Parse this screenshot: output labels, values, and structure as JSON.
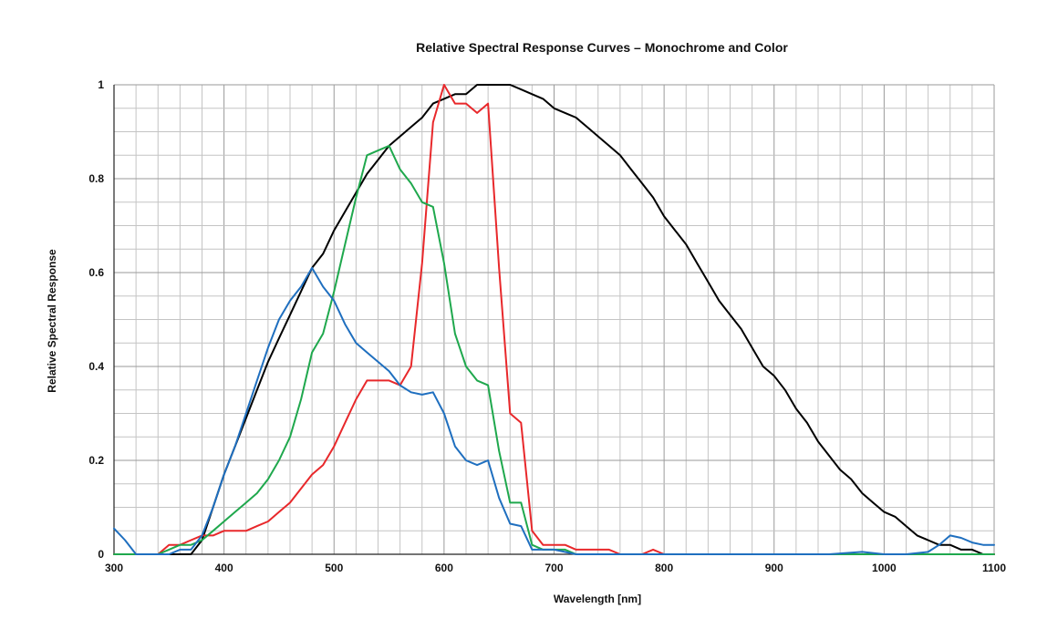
{
  "chart_data": {
    "type": "line",
    "title": "Relative Spectral Response Curves – Monochrome and Color",
    "xlabel": "Wavelength [nm]",
    "ylabel": "Relative Spectral Response",
    "xlim": [
      300,
      1100
    ],
    "ylim": [
      0,
      1
    ],
    "x_ticks": [
      "300",
      "400",
      "500",
      "600",
      "700",
      "800",
      "900",
      "1000",
      "1100"
    ],
    "y_ticks": [
      "0",
      "0.2",
      "0.4",
      "0.6",
      "0.8",
      "1"
    ],
    "grid": true,
    "series": [
      {
        "key": "monochrome",
        "color": "#000000",
        "x": [
          300,
          310,
          320,
          330,
          340,
          350,
          360,
          370,
          380,
          390,
          400,
          410,
          420,
          430,
          440,
          450,
          460,
          470,
          480,
          490,
          500,
          510,
          520,
          530,
          540,
          550,
          560,
          570,
          580,
          590,
          600,
          610,
          620,
          630,
          640,
          650,
          660,
          670,
          680,
          690,
          700,
          710,
          720,
          730,
          740,
          750,
          760,
          770,
          780,
          790,
          800,
          810,
          820,
          830,
          840,
          850,
          860,
          870,
          880,
          890,
          900,
          910,
          920,
          930,
          940,
          950,
          960,
          970,
          980,
          990,
          1000,
          1010,
          1020,
          1030,
          1040,
          1050,
          1060,
          1070,
          1080,
          1090,
          1100
        ],
        "y": [
          0.0,
          0.0,
          0.0,
          0.0,
          0.0,
          0.0,
          0.0,
          0.0,
          0.03,
          0.1,
          0.17,
          0.23,
          0.29,
          0.35,
          0.41,
          0.46,
          0.51,
          0.56,
          0.61,
          0.64,
          0.69,
          0.73,
          0.77,
          0.81,
          0.84,
          0.87,
          0.89,
          0.91,
          0.93,
          0.96,
          0.97,
          0.98,
          0.98,
          1.0,
          1.0,
          1.0,
          1.0,
          0.99,
          0.98,
          0.97,
          0.95,
          0.94,
          0.93,
          0.91,
          0.89,
          0.87,
          0.85,
          0.82,
          0.79,
          0.76,
          0.72,
          0.69,
          0.66,
          0.62,
          0.58,
          0.54,
          0.51,
          0.48,
          0.44,
          0.4,
          0.38,
          0.35,
          0.31,
          0.28,
          0.24,
          0.21,
          0.18,
          0.16,
          0.13,
          0.11,
          0.09,
          0.08,
          0.06,
          0.04,
          0.03,
          0.02,
          0.02,
          0.01,
          0.01,
          0.0,
          0.0
        ]
      },
      {
        "key": "red",
        "color": "#e8282b",
        "x": [
          300,
          310,
          320,
          330,
          340,
          350,
          360,
          370,
          380,
          390,
          400,
          410,
          420,
          430,
          440,
          450,
          460,
          470,
          480,
          490,
          500,
          510,
          520,
          530,
          540,
          550,
          560,
          570,
          580,
          590,
          600,
          610,
          620,
          630,
          640,
          650,
          660,
          670,
          680,
          690,
          700,
          710,
          720,
          730,
          740,
          750,
          760,
          770,
          780,
          790,
          800,
          820,
          850,
          900,
          950,
          1000,
          1050,
          1100
        ],
        "y": [
          0.0,
          0.0,
          0.0,
          0.0,
          0.0,
          0.02,
          0.02,
          0.03,
          0.04,
          0.04,
          0.05,
          0.05,
          0.05,
          0.06,
          0.07,
          0.09,
          0.11,
          0.14,
          0.17,
          0.19,
          0.23,
          0.28,
          0.33,
          0.37,
          0.37,
          0.37,
          0.36,
          0.4,
          0.62,
          0.92,
          1.0,
          0.96,
          0.96,
          0.94,
          0.96,
          0.61,
          0.3,
          0.28,
          0.05,
          0.02,
          0.02,
          0.02,
          0.01,
          0.01,
          0.01,
          0.01,
          0.0,
          0.0,
          0.0,
          0.01,
          0.0,
          0.0,
          0.0,
          0.0,
          0.0,
          0.0,
          0.0,
          0.0
        ]
      },
      {
        "key": "green",
        "color": "#1fa84d",
        "x": [
          300,
          310,
          320,
          330,
          340,
          350,
          360,
          370,
          380,
          390,
          400,
          410,
          420,
          430,
          440,
          450,
          460,
          470,
          480,
          490,
          500,
          510,
          520,
          530,
          540,
          550,
          560,
          570,
          580,
          590,
          600,
          610,
          620,
          630,
          640,
          650,
          660,
          670,
          680,
          690,
          700,
          710,
          720,
          730,
          740,
          750,
          760,
          780,
          800,
          850,
          900,
          950,
          1000,
          1050,
          1100
        ],
        "y": [
          0.0,
          0.0,
          0.0,
          0.0,
          0.0,
          0.01,
          0.02,
          0.02,
          0.03,
          0.05,
          0.07,
          0.09,
          0.11,
          0.13,
          0.16,
          0.2,
          0.25,
          0.33,
          0.43,
          0.47,
          0.56,
          0.66,
          0.76,
          0.85,
          0.86,
          0.87,
          0.82,
          0.79,
          0.75,
          0.74,
          0.62,
          0.47,
          0.4,
          0.37,
          0.36,
          0.22,
          0.11,
          0.11,
          0.02,
          0.01,
          0.01,
          0.01,
          0.0,
          0.0,
          0.0,
          0.0,
          0.0,
          0.0,
          0.0,
          0.0,
          0.0,
          0.0,
          0.0,
          0.0,
          0.0
        ]
      },
      {
        "key": "blue",
        "color": "#1f6fbf",
        "x": [
          300,
          310,
          320,
          330,
          340,
          350,
          360,
          370,
          380,
          390,
          400,
          410,
          420,
          430,
          440,
          450,
          460,
          470,
          480,
          490,
          500,
          510,
          520,
          530,
          540,
          550,
          560,
          570,
          580,
          590,
          600,
          610,
          620,
          630,
          640,
          650,
          660,
          670,
          680,
          690,
          700,
          720,
          750,
          800,
          850,
          900,
          950,
          980,
          1000,
          1020,
          1040,
          1050,
          1060,
          1070,
          1080,
          1090,
          1100
        ],
        "y": [
          0.055,
          0.03,
          0.0,
          0.0,
          0.0,
          0.0,
          0.01,
          0.01,
          0.04,
          0.1,
          0.17,
          0.23,
          0.3,
          0.37,
          0.44,
          0.5,
          0.54,
          0.57,
          0.61,
          0.57,
          0.54,
          0.49,
          0.45,
          0.43,
          0.41,
          0.39,
          0.36,
          0.345,
          0.34,
          0.345,
          0.3,
          0.23,
          0.2,
          0.19,
          0.2,
          0.12,
          0.065,
          0.06,
          0.01,
          0.01,
          0.01,
          0.0,
          0.0,
          0.0,
          0.0,
          0.0,
          0.0,
          0.005,
          0.0,
          0.0,
          0.005,
          0.02,
          0.04,
          0.035,
          0.025,
          0.02,
          0.02
        ]
      }
    ]
  }
}
